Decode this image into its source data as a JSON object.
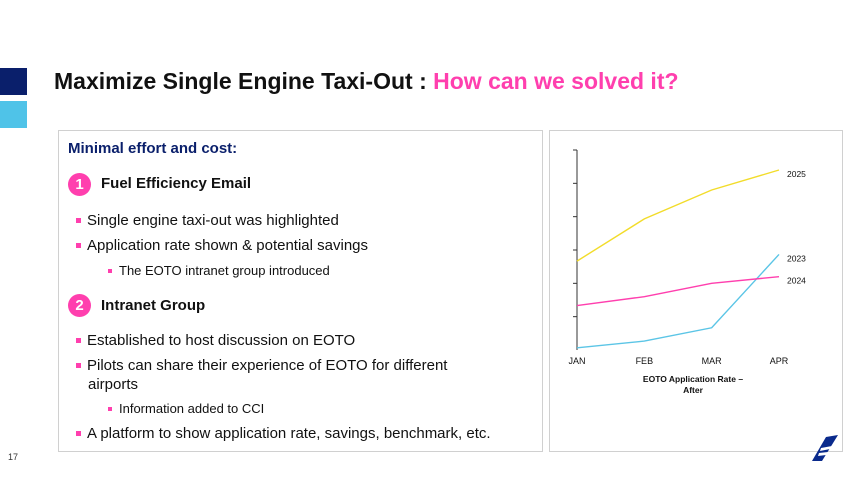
{
  "slide": {
    "title_main": "Maximize Single Engine Taxi-Out :",
    "title_accent": "How can we solved it?",
    "page_number": "17"
  },
  "left_panel": {
    "subheading": "Minimal effort and cost:",
    "sections": [
      {
        "number": "1",
        "heading": "Fuel Efficiency Email",
        "bullets": [
          "Single engine taxi-out was highlighted",
          "Application rate shown & potential savings"
        ],
        "sub_bullet": "The EOTO intranet group introduced"
      },
      {
        "number": "2",
        "heading": "Intranet Group",
        "bullets": [
          "Established to host discussion on EOTO",
          "Pilots can share their experience of EOTO for different",
          "A platform to show application rate, savings, benchmark, etc."
        ],
        "bullet_continuation": "airports",
        "sub_bullet": "Information added to CCI"
      }
    ]
  },
  "chart_data": {
    "type": "line",
    "x": [
      "JAN",
      "FEB",
      "MAR",
      "APR"
    ],
    "series": [
      {
        "name": "2025",
        "values": [
          40,
          59,
          72,
          81
        ],
        "color": "#f2dc2a"
      },
      {
        "name": "2023",
        "values": [
          1,
          4,
          10,
          43
        ],
        "color": "#5bc5e6"
      },
      {
        "name": "2024",
        "values": [
          20,
          24,
          30,
          33
        ],
        "color": "#ff3fae"
      }
    ],
    "ylim": [
      0,
      90
    ],
    "xlabel_line1": "EOTO Application Rate –",
    "xlabel_line2": "After",
    "grid": false,
    "legend": "inline labels at line ends"
  },
  "colors": {
    "navy": "#0a1f6b",
    "cyan": "#4fc3e8",
    "pink": "#ff3fae"
  }
}
